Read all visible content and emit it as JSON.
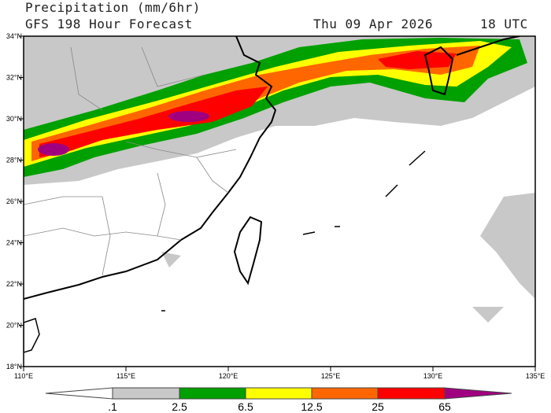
{
  "header": {
    "title": "Precipitation (mm/6hr)",
    "subtitle": "GFS 198 Hour Forecast",
    "date": "Thu 09 Apr 2026",
    "time": "18 UTC"
  },
  "map": {
    "lon_range": [
      110,
      135
    ],
    "lat_range": [
      18,
      34
    ],
    "lon_ticks": [
      "110°E",
      "115°E",
      "120°E",
      "125°E",
      "130°E",
      "135°E"
    ],
    "lat_ticks": [
      "34°N",
      "32°N",
      "30°N",
      "28°N",
      "26°N",
      "24°N",
      "22°N",
      "20°N",
      "18°N"
    ]
  },
  "colorbar": {
    "labels": [
      ".1",
      "2.5",
      "6.5",
      "12.5",
      "25",
      "65"
    ],
    "colors": [
      "#ffffff",
      "#c8c8c8",
      "#00a000",
      "#ffff00",
      "#ff6600",
      "#ff0000",
      "#a00080"
    ]
  }
}
